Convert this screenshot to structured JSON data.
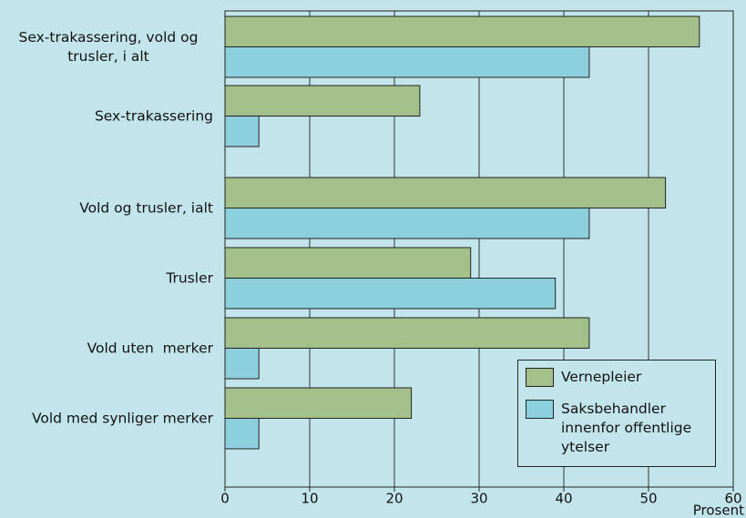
{
  "chart_data": {
    "type": "bar",
    "orientation": "horizontal",
    "categories": [
      "Sex-trakassering, vold og trusler, i alt",
      "Sex-trakassering",
      "Vold og trusler, ialt",
      "Trusler",
      "Vold uten  merker",
      "Vold med synliger merker"
    ],
    "series": [
      {
        "name": "Vernepleier",
        "color": "#a3bf8a",
        "values": [
          56,
          23,
          52,
          29,
          43,
          22
        ]
      },
      {
        "name": "Saksbehandler innenfor offentlige ytelser",
        "color": "#8ccfdd",
        "values": [
          43,
          4,
          43,
          39,
          4,
          4
        ]
      }
    ],
    "xlim": [
      0,
      60
    ],
    "xticks": [
      0,
      10,
      20,
      30,
      40,
      50,
      60
    ],
    "xlabel": "Prosent",
    "grid": true,
    "legend": "lower right"
  }
}
